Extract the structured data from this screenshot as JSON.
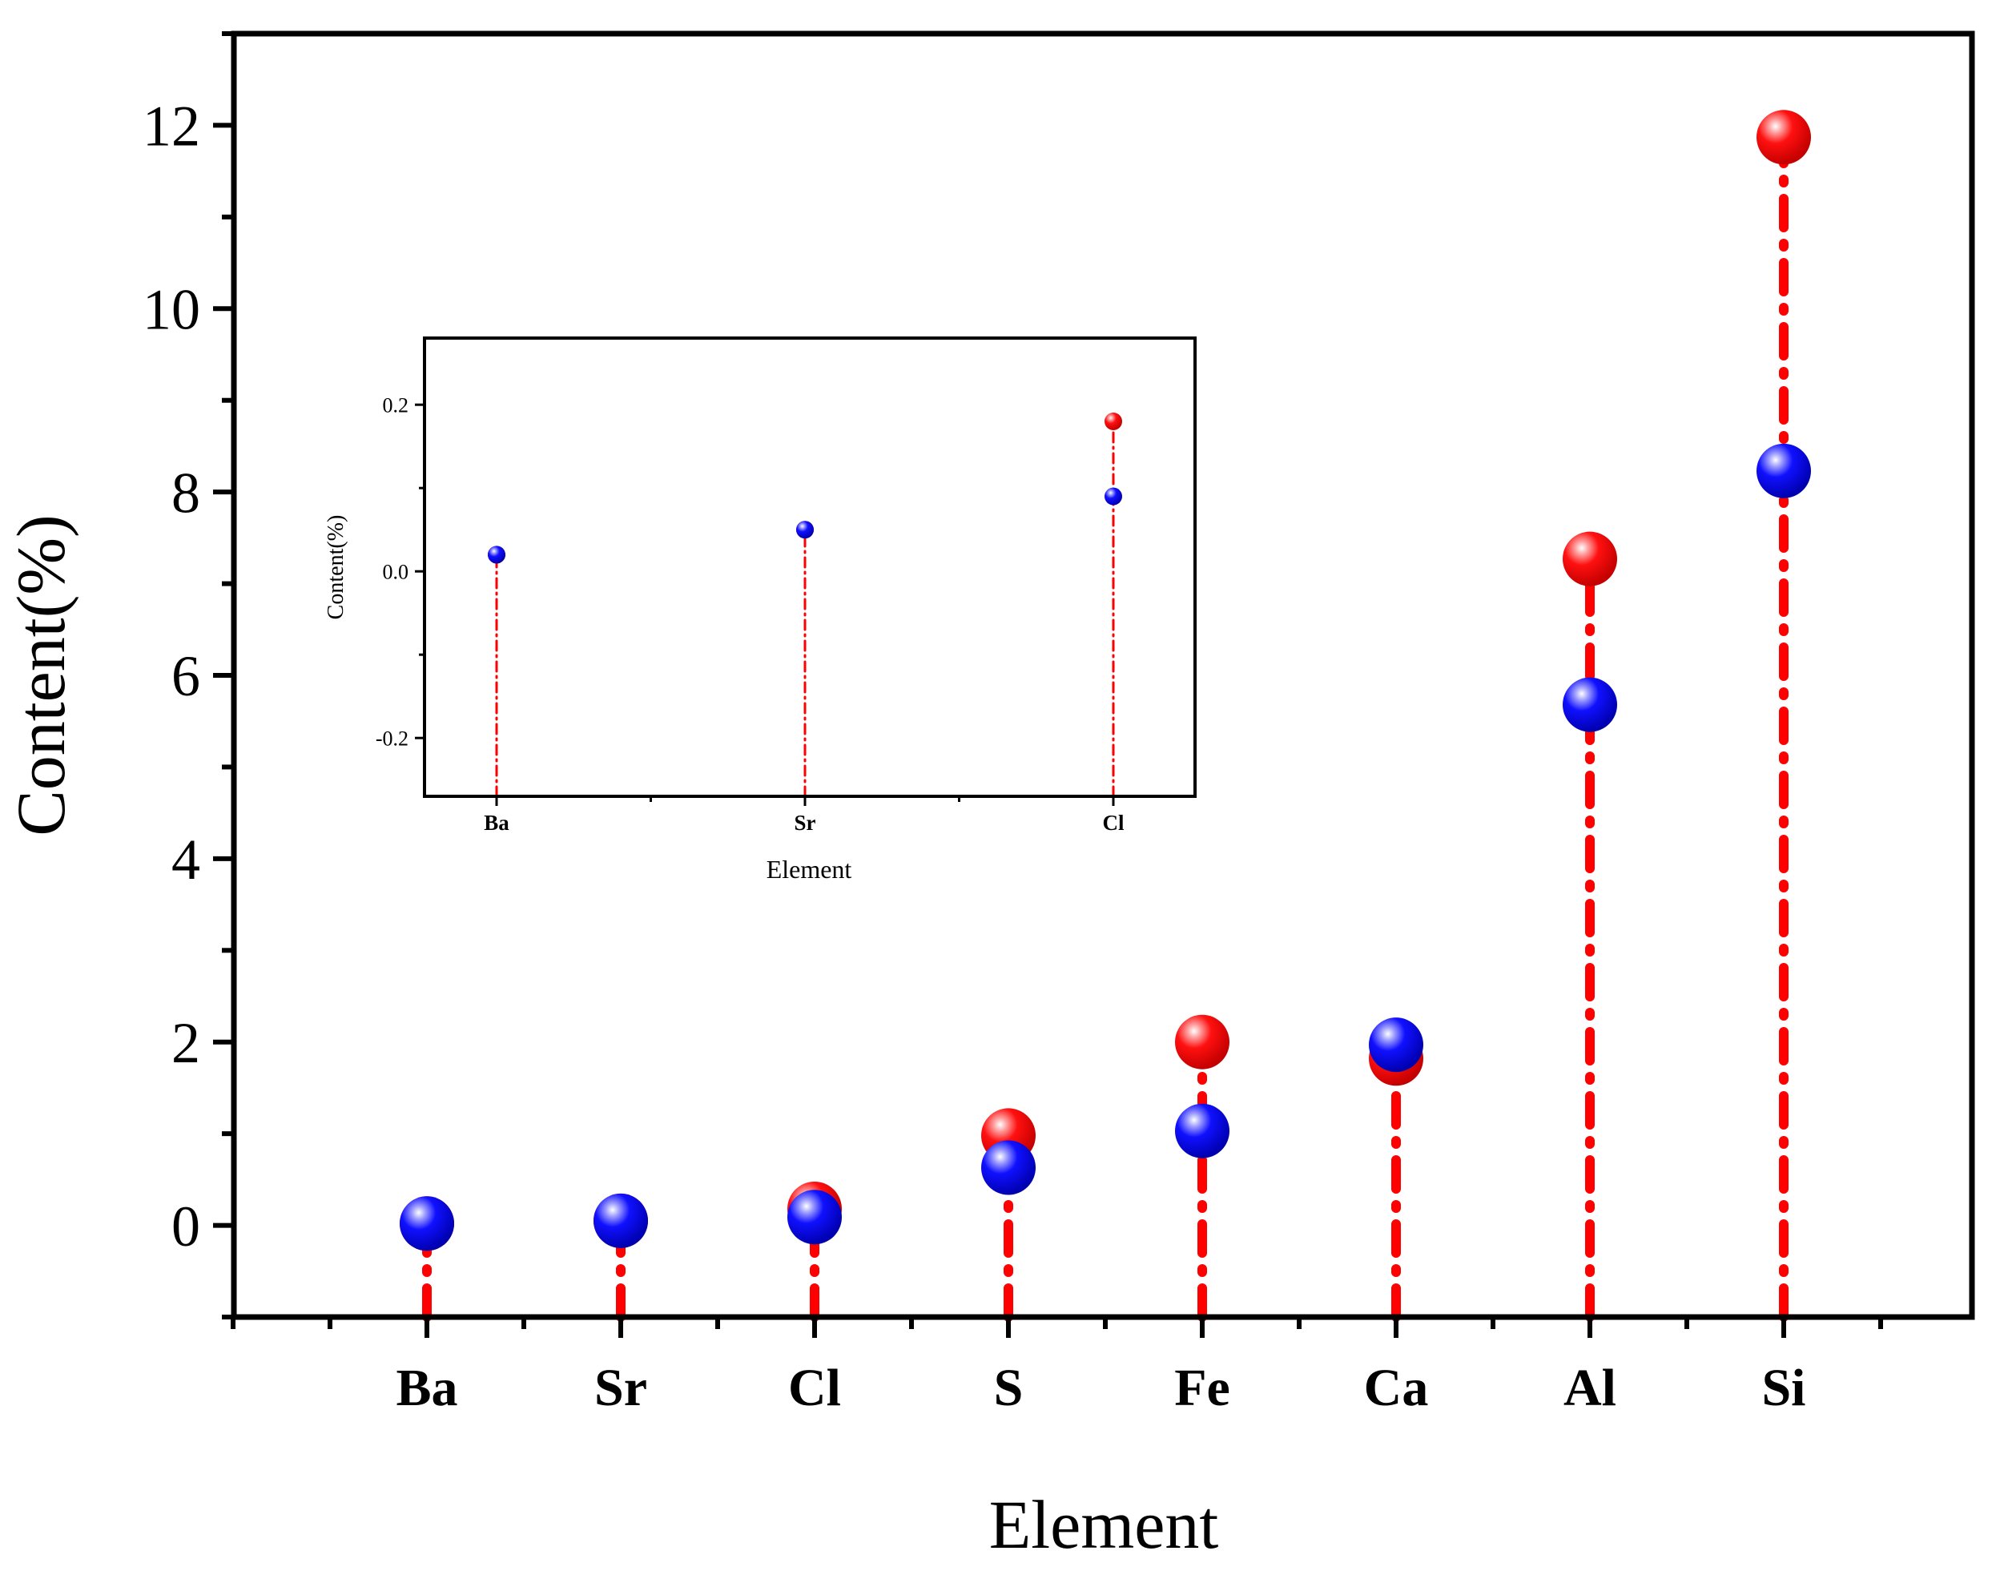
{
  "chart_data": [
    {
      "type": "scatter",
      "subtype": "lollipop",
      "title": "",
      "xlabel": "Element",
      "ylabel": "Content(%)",
      "categories": [
        "Ba",
        "Sr",
        "Cl",
        "S",
        "Fe",
        "Ca",
        "Al",
        "Si"
      ],
      "ylim": [
        -1.0,
        13.0
      ],
      "yticks": [
        0,
        2,
        4,
        6,
        8,
        10,
        12
      ],
      "ytick_labels": [
        "0",
        "2",
        "4",
        "6",
        "8",
        "10",
        "12"
      ],
      "series": [
        {
          "name": "red",
          "color": "#ff0000",
          "values": [
            0.02,
            0.05,
            0.18,
            0.98,
            2.0,
            1.82,
            7.27,
            11.87
          ]
        },
        {
          "name": "blue",
          "color": "#0000ee",
          "values": [
            0.02,
            0.05,
            0.09,
            0.63,
            1.03,
            1.97,
            5.68,
            8.23
          ]
        }
      ],
      "stem_color": "#ff0000",
      "stem_style": "dash-dot",
      "grid": false,
      "legend": "none"
    },
    {
      "type": "scatter",
      "subtype": "lollipop-inset",
      "title": "",
      "xlabel": "Element",
      "ylabel": "Content(%)",
      "categories": [
        "Ba",
        "Sr",
        "Cl"
      ],
      "ylim": [
        -0.27,
        0.28
      ],
      "yticks": [
        -0.2,
        0.0,
        0.2
      ],
      "ytick_labels": [
        "-0.2",
        "0.0",
        "0.2"
      ],
      "series": [
        {
          "name": "red",
          "color": "#ff0000",
          "values": [
            0.02,
            0.05,
            0.18
          ]
        },
        {
          "name": "blue",
          "color": "#0000ee",
          "values": [
            0.02,
            0.05,
            0.09
          ]
        }
      ],
      "stem_color": "#ff0000",
      "stem_style": "dash-dot",
      "grid": false,
      "legend": "none"
    }
  ]
}
